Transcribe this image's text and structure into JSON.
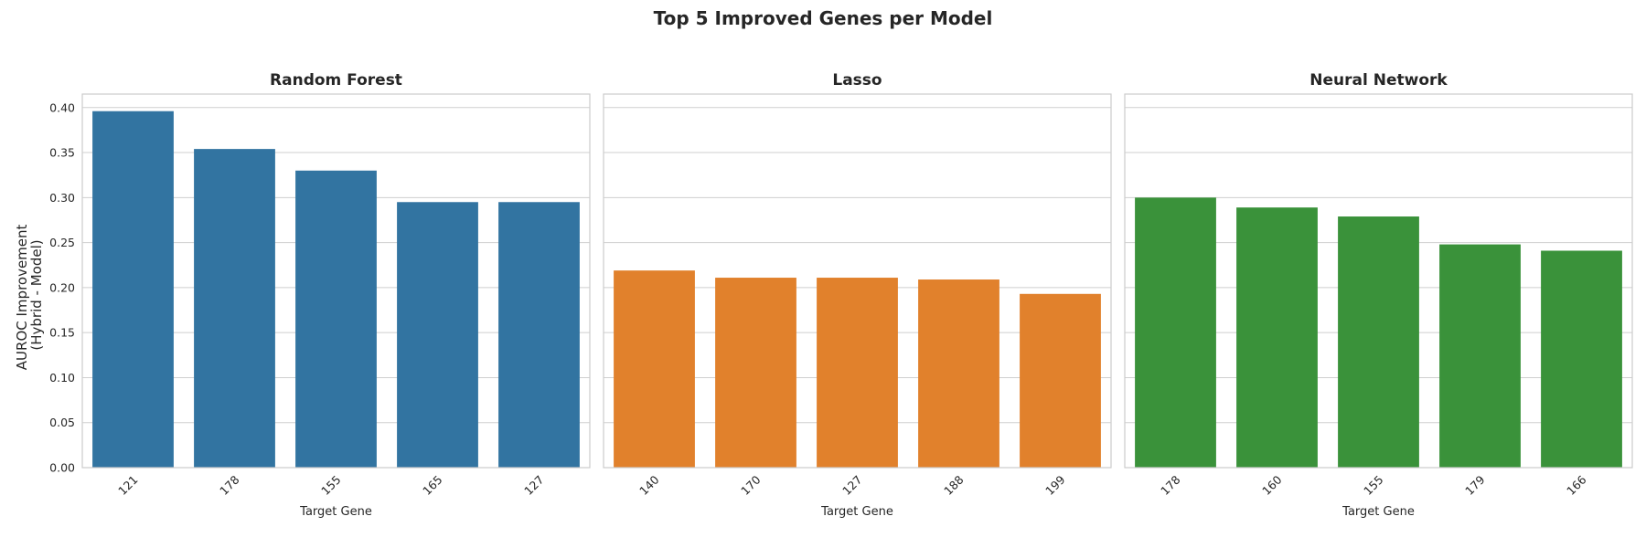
{
  "suptitle": "Top 5 Improved Genes per Model",
  "ylabel": "AUROC Improvement\n(Hybrid - Model)",
  "chart_data": [
    {
      "type": "bar",
      "title": "Random Forest",
      "xlabel": "Target Gene",
      "categories": [
        "121",
        "178",
        "155",
        "165",
        "127"
      ],
      "values": [
        0.396,
        0.354,
        0.33,
        0.295,
        0.295
      ],
      "color": "#3274a1",
      "ylim": [
        0,
        0.415
      ],
      "yticks": [
        "0.00",
        "0.05",
        "0.10",
        "0.15",
        "0.20",
        "0.25",
        "0.30",
        "0.35",
        "0.40"
      ],
      "grid": true
    },
    {
      "type": "bar",
      "title": "Lasso",
      "xlabel": "Target Gene",
      "categories": [
        "140",
        "170",
        "127",
        "188",
        "199"
      ],
      "values": [
        0.219,
        0.211,
        0.211,
        0.209,
        0.193
      ],
      "color": "#e1812c",
      "ylim": [
        0,
        0.415
      ],
      "yticks": [
        "0.00",
        "0.05",
        "0.10",
        "0.15",
        "0.20",
        "0.25",
        "0.30",
        "0.35",
        "0.40"
      ],
      "grid": true
    },
    {
      "type": "bar",
      "title": "Neural Network",
      "xlabel": "Target Gene",
      "categories": [
        "178",
        "160",
        "155",
        "179",
        "166"
      ],
      "values": [
        0.3,
        0.289,
        0.279,
        0.248,
        0.241
      ],
      "color": "#3a923a",
      "ylim": [
        0,
        0.415
      ],
      "yticks": [
        "0.00",
        "0.05",
        "0.10",
        "0.15",
        "0.20",
        "0.25",
        "0.30",
        "0.35",
        "0.40"
      ],
      "grid": true
    }
  ]
}
